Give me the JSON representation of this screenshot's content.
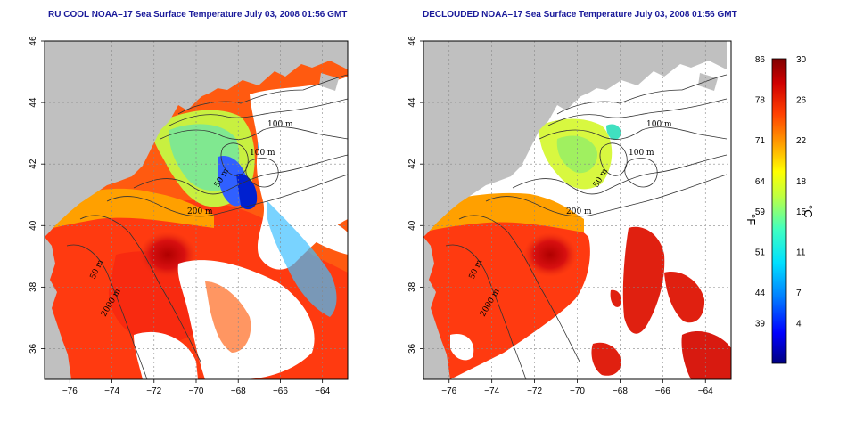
{
  "panels": [
    {
      "title": "RU COOL NOAA–17 Sea Surface Temperature July 03, 2008 01:56 GMT",
      "cloud_masked": false
    },
    {
      "title": "DECLOUDED NOAA–17 Sea Surface Temperature July 03, 2008 01:56 GMT",
      "cloud_masked": true
    }
  ],
  "axes": {
    "lon_ticks": [
      "−76",
      "−74",
      "−72",
      "−70",
      "−68",
      "−66",
      "−64"
    ],
    "lon_values": [
      -76,
      -74,
      -72,
      -70,
      -68,
      -66,
      -64
    ],
    "lat_ticks": [
      "36",
      "38",
      "40",
      "42",
      "44",
      "46"
    ],
    "lat_values": [
      36,
      38,
      40,
      42,
      44,
      46
    ],
    "lon_range": [
      -77.2,
      -62.8
    ],
    "lat_range": [
      35,
      46
    ],
    "grid": "dotted"
  },
  "contour_labels": [
    "100 m",
    "100 m",
    "50 m",
    "200 m",
    "50 m",
    "2000 m"
  ],
  "colorbar": {
    "celsius_unit": "°C",
    "fahrenheit_unit": "°F",
    "celsius_ticks": [
      "30",
      "26",
      "22",
      "18",
      "15",
      "11",
      "7",
      "4"
    ],
    "celsius_values": [
      30,
      26,
      22,
      18,
      15,
      11,
      7,
      4
    ],
    "fahrenheit_ticks": [
      "86",
      "78",
      "71",
      "64",
      "59",
      "51",
      "44",
      "39"
    ],
    "fahrenheit_values": [
      86,
      78,
      71,
      64,
      59,
      51,
      44,
      39
    ],
    "range_c": [
      0,
      30
    ],
    "colors": [
      "#000080",
      "#0000ff",
      "#0080ff",
      "#00e0ff",
      "#40ffc0",
      "#c0ff40",
      "#ffff00",
      "#ffa000",
      "#ff4000",
      "#d00000",
      "#800000"
    ]
  },
  "colors": {
    "land": "#c0c0c0",
    "cloud": "#ffffff",
    "title": "#1a1a9a"
  }
}
